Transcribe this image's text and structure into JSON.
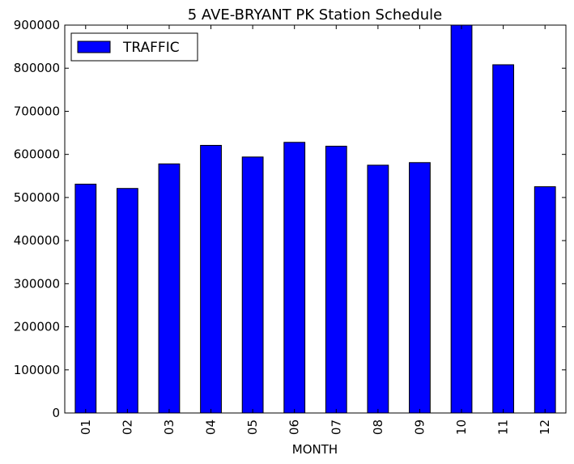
{
  "chart_data": {
    "type": "bar",
    "title": "5 AVE-BRYANT PK Station Schedule",
    "xlabel": "MONTH",
    "ylabel": "",
    "categories": [
      "01",
      "02",
      "03",
      "04",
      "05",
      "06",
      "07",
      "08",
      "09",
      "10",
      "11",
      "12"
    ],
    "series": [
      {
        "name": "TRAFFIC",
        "color": "#0000ff",
        "values": [
          531000,
          521000,
          578000,
          621000,
          594000,
          628000,
          619000,
          575000,
          581000,
          900000,
          808000,
          525000
        ]
      }
    ],
    "ylim": [
      0,
      900000
    ],
    "yticks": [
      0,
      100000,
      200000,
      300000,
      400000,
      500000,
      600000,
      700000,
      800000,
      900000
    ],
    "legend_position": "top-left",
    "grid": false
  }
}
